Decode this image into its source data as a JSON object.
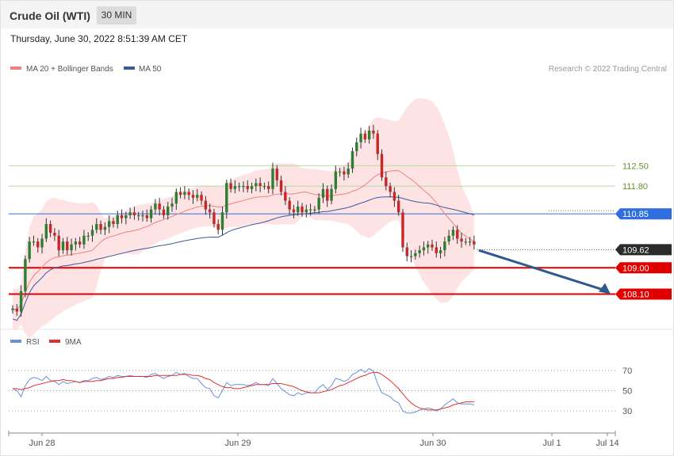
{
  "header": {
    "title": "Crude Oil (WTI)",
    "timeframe": "30 MIN",
    "datetime": "Thursday, June 30, 2022 8:51:39 AM CET"
  },
  "credit": "Research © 2022 Trading Central",
  "colors": {
    "bull": "#2e7d32",
    "bear": "#c62828",
    "band_fill": "#fde0e0",
    "ma20": "#f08080",
    "ma50": "#3a5a9a",
    "resistance_green": "#b7d8a0",
    "pivot_blue": "#2f6fe0",
    "support_red": "#e00000",
    "arrow": "#2f5a8f",
    "rsi": "#6b8fd8",
    "rsi_ma": "#e03030"
  },
  "chart_data": [
    {
      "type": "candlestick",
      "legend": [
        {
          "name": "MA 20 + Bollinger Bands",
          "color": "#f08080"
        },
        {
          "name": "MA 50",
          "color": "#3a5a9a"
        }
      ],
      "ylim": [
        107.0,
        115.6
      ],
      "x_ticks": [
        "Jun 28",
        "Jun 29",
        "Jun 30",
        "Jul 1",
        "Jul 14"
      ],
      "levels": [
        {
          "value": 112.5,
          "label": "112.50",
          "style": "resistance",
          "color": "#7a9a3a"
        },
        {
          "value": 111.8,
          "label": "111.80",
          "style": "resistance",
          "color": "#7a9a3a"
        },
        {
          "value": 110.85,
          "label": "110.85",
          "style": "pivot",
          "color": "#2f6fe0"
        },
        {
          "value": 109.62,
          "label": "109.62",
          "style": "last",
          "color": "#333333"
        },
        {
          "value": 109.0,
          "label": "109.00",
          "style": "support",
          "color": "#e00000"
        },
        {
          "value": 108.1,
          "label": "108.10",
          "style": "support",
          "color": "#e00000"
        }
      ],
      "forecast_arrow": {
        "from": 109.6,
        "to": 108.1
      },
      "close": [
        107.6,
        107.5,
        108.2,
        109.3,
        109.9,
        109.9,
        109.7,
        110.0,
        110.5,
        110.2,
        110.1,
        109.6,
        109.9,
        109.6,
        109.8,
        109.9,
        109.8,
        110.1,
        110.1,
        110.3,
        110.5,
        110.3,
        110.4,
        110.6,
        110.5,
        110.8,
        110.7,
        110.8,
        110.9,
        110.8,
        110.8,
        110.8,
        110.7,
        111.0,
        111.2,
        111.0,
        110.8,
        111.1,
        111.2,
        111.6,
        111.5,
        111.6,
        111.5,
        111.4,
        111.5,
        111.3,
        111.0,
        110.9,
        110.5,
        110.3,
        110.9,
        111.9,
        111.7,
        111.8,
        111.8,
        111.8,
        111.7,
        111.8,
        111.9,
        111.8,
        111.8,
        111.7,
        112.4,
        112.0,
        111.6,
        111.3,
        111.0,
        110.9,
        111.1,
        110.9,
        111.0,
        111.0,
        111.0,
        111.4,
        111.7,
        111.3,
        111.7,
        112.3,
        112.3,
        112.2,
        112.4,
        113.0,
        113.3,
        113.6,
        113.4,
        113.7,
        113.6,
        112.9,
        112.1,
        111.8,
        111.6,
        111.3,
        110.9,
        109.7,
        109.4,
        109.4,
        109.5,
        109.6,
        109.7,
        109.8,
        109.7,
        109.5,
        109.6,
        109.9,
        110.1,
        110.3,
        110.0,
        109.9,
        109.9,
        109.9,
        109.8
      ]
    },
    {
      "type": "line",
      "series": [
        {
          "name": "RSI",
          "color": "#6b8fd8"
        },
        {
          "name": "9MA",
          "color": "#e03030"
        }
      ],
      "ylim": [
        20,
        80
      ],
      "y_ticks": [
        70,
        50,
        30
      ],
      "rsi": [
        52,
        50,
        44,
        55,
        61,
        63,
        62,
        60,
        64,
        60,
        59,
        56,
        59,
        57,
        58,
        59,
        58,
        60,
        60,
        62,
        63,
        61,
        62,
        64,
        63,
        65,
        64,
        64,
        65,
        64,
        64,
        64,
        63,
        66,
        67,
        64,
        62,
        64,
        65,
        68,
        66,
        67,
        64,
        62,
        62,
        57,
        53,
        52,
        45,
        43,
        50,
        58,
        55,
        56,
        56,
        56,
        55,
        56,
        58,
        56,
        56,
        55,
        62,
        57,
        52,
        49,
        46,
        45,
        48,
        46,
        48,
        48,
        48,
        53,
        56,
        51,
        55,
        62,
        61,
        59,
        61,
        66,
        68,
        71,
        68,
        72,
        69,
        57,
        48,
        46,
        44,
        40,
        38,
        30,
        28,
        28,
        29,
        31,
        32,
        33,
        32,
        30,
        32,
        36,
        39,
        42,
        38,
        37,
        37,
        37,
        36
      ],
      "rsi_ma": [
        52,
        52,
        51,
        52,
        53,
        55,
        56,
        57,
        58,
        59,
        60,
        60,
        61,
        60,
        60,
        59,
        58,
        59,
        59,
        59,
        60,
        60,
        61,
        62,
        62,
        63,
        63,
        64,
        64,
        64,
        64,
        64,
        64,
        64,
        65,
        65,
        65,
        65,
        65,
        65,
        66,
        66,
        66,
        65,
        65,
        64,
        62,
        61,
        58,
        56,
        54,
        53,
        53,
        52,
        52,
        53,
        54,
        55,
        56,
        56,
        56,
        56,
        57,
        57,
        57,
        56,
        55,
        54,
        52,
        50,
        49,
        48,
        48,
        48,
        49,
        50,
        51,
        53,
        55,
        56,
        58,
        60,
        62,
        64,
        65,
        67,
        68,
        68,
        66,
        63,
        60,
        56,
        52,
        47,
        42,
        38,
        35,
        33,
        32,
        31,
        31,
        31,
        32,
        33,
        34,
        36,
        37,
        38,
        39,
        39,
        39
      ]
    }
  ]
}
